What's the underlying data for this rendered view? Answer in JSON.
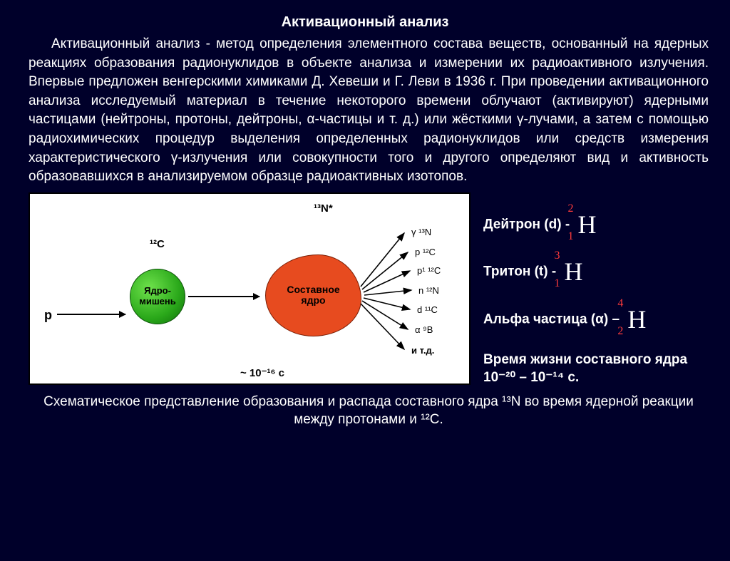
{
  "title": "Активационный анализ",
  "paragraph": "Активационный анализ - метод определения элементного состава веществ, основанный на ядерных реакциях образования радионуклидов в объекте анализа и измерении их радиоактивного излучения. Впервые предложен венгерскими химиками Д. Хевеши и Г. Леви в 1936 г. При проведении активационного анализа исследуемый материал в течение некоторого времени облучают (активируют) ядерными частицами (нейтроны, протоны, дейтроны, α-частицы и т. д.) или жёсткими γ-лучами, а затем с помощью радиохимических процедур выделения определенных радионуклидов или средств измерения характеристического γ-излучения или совокупности того и другого определяют вид и активность образовавшихся в анализируемом образце радиоактивных изотопов.",
  "diagram": {
    "label_top": "¹³N*",
    "label_12c": "¹²C",
    "label_p": "p",
    "green": "Ядро-\nмишень",
    "red": "Составное\nядро",
    "time": "~ 10⁻¹⁶ c",
    "rays": [
      "γ  ¹³N",
      "p  ¹²C",
      "p¹ ¹²C",
      "n  ¹²N",
      "d  ¹¹C",
      "α   ⁹B",
      "и т.д."
    ],
    "colors": {
      "green": "#2aa81a",
      "red": "#e74b1f",
      "box_bg": "#ffffff",
      "box_border": "#000000"
    }
  },
  "side": {
    "deuteron": "Дейтрон (d)  -",
    "triton": "Тритон  (t)   -",
    "alpha": "Альфа частица (α) –",
    "lifetime": "Время жизни составного ядра 10⁻²⁰ – 10⁻¹⁴ с.",
    "nuc_d": {
      "mass": "2",
      "z": "1",
      "sym": "H"
    },
    "nuc_t": {
      "mass": "3",
      "z": "1",
      "sym": "H"
    },
    "nuc_a": {
      "mass": "4",
      "z": "2",
      "sym": "H"
    }
  },
  "caption": "Схематическое представление образования и распада составного ядра ¹³N во время ядерной реакции между протонами и ¹²C.",
  "colors": {
    "bg": "#00002a",
    "text": "#ffffff",
    "isotope_red": "#ff3b3b"
  }
}
